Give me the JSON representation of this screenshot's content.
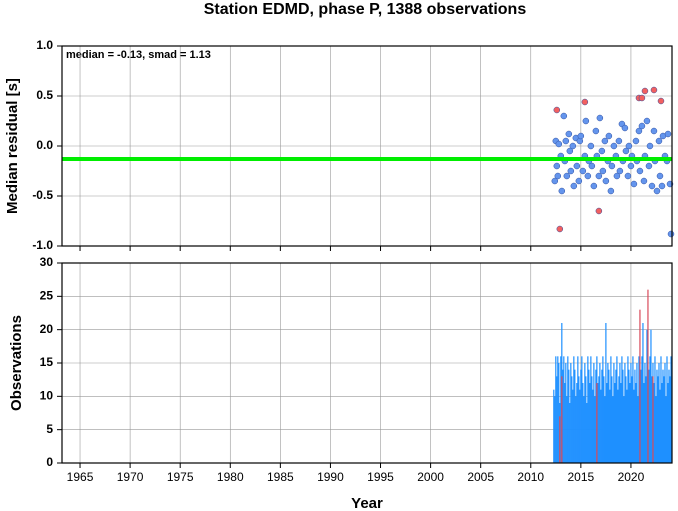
{
  "chart_data": [
    {
      "type": "scatter",
      "title": "Station EDMD, phase P, 1388 observations",
      "y_label": "Median residual [s]",
      "annotation": "median = -0.13, smad = 1.13",
      "median": -0.13,
      "median_color": "#00ee00",
      "xlim": [
        1963.2,
        2024.1
      ],
      "xticks": [
        1965,
        1970,
        1975,
        1980,
        1985,
        1990,
        1995,
        2000,
        2005,
        2010,
        2015,
        2020
      ],
      "ylim": [
        -1,
        1
      ],
      "yticks": [
        {
          "value": -1,
          "label": "-1.0"
        },
        -0.5,
        {
          "value": 0,
          "label": "0.0"
        },
        0.5,
        {
          "value": 1,
          "label": "1.0"
        }
      ],
      "grid": true,
      "series": [
        {
          "color": "#6495ed",
          "x": [
            2012.4,
            2012.5,
            2012.6,
            2012.7,
            2012.8,
            2013.0,
            2013.1,
            2013.3,
            2013.4,
            2013.5,
            2013.6,
            2013.8,
            2013.9,
            2014.0,
            2014.2,
            2014.3,
            2014.5,
            2014.6,
            2014.8,
            2014.9,
            2015.0,
            2015.2,
            2015.4,
            2015.5,
            2015.7,
            2015.8,
            2016.0,
            2016.1,
            2016.3,
            2016.5,
            2016.6,
            2016.8,
            2016.9,
            2017.1,
            2017.2,
            2017.4,
            2017.5,
            2017.7,
            2017.8,
            2018.0,
            2018.1,
            2018.3,
            2018.5,
            2018.6,
            2018.8,
            2018.9,
            2019.1,
            2019.2,
            2019.4,
            2019.5,
            2019.7,
            2019.8,
            2020.0,
            2020.1,
            2020.3,
            2020.5,
            2020.6,
            2020.8,
            2020.9,
            2021.1,
            2021.3,
            2021.4,
            2021.6,
            2021.8,
            2021.9,
            2022.1,
            2022.3,
            2022.4,
            2022.6,
            2022.8,
            2022.9,
            2023.1,
            2023.2,
            2023.4,
            2023.6,
            2023.7,
            2023.9,
            2024.0
          ],
          "values": [
            -0.35,
            0.05,
            -0.2,
            -0.3,
            0.02,
            -0.1,
            -0.45,
            0.3,
            -0.15,
            0.05,
            -0.3,
            0.12,
            -0.05,
            -0.25,
            0.0,
            -0.4,
            0.08,
            -0.2,
            -0.35,
            0.05,
            0.1,
            -0.25,
            -0.1,
            0.25,
            -0.3,
            -0.15,
            0.0,
            -0.2,
            -0.4,
            0.15,
            -0.1,
            -0.3,
            0.28,
            -0.05,
            -0.25,
            0.05,
            -0.35,
            -0.15,
            0.1,
            -0.45,
            -0.2,
            0.0,
            -0.1,
            -0.3,
            0.05,
            -0.25,
            0.22,
            -0.15,
            0.18,
            -0.05,
            -0.3,
            0.0,
            -0.2,
            -0.1,
            -0.38,
            0.05,
            -0.15,
            0.15,
            -0.25,
            0.2,
            -0.35,
            -0.1,
            0.25,
            -0.2,
            0.0,
            -0.4,
            0.15,
            -0.15,
            -0.45,
            0.05,
            -0.3,
            -0.4,
            0.1,
            -0.1,
            -0.15,
            0.12,
            -0.38,
            -0.88
          ]
        },
        {
          "color": "#f26060",
          "x": [
            2012.6,
            2012.9,
            2015.4,
            2016.8,
            2020.8,
            2021.1,
            2021.4,
            2022.3,
            2023.0
          ],
          "values": [
            0.36,
            -0.83,
            0.44,
            -0.65,
            0.48,
            0.48,
            0.55,
            0.56,
            0.45
          ]
        }
      ]
    },
    {
      "type": "bar",
      "y_label": "Observations",
      "x_label": "Year",
      "xlim": [
        1963.2,
        2024.1
      ],
      "xticks": [
        1965,
        1970,
        1975,
        1980,
        1985,
        1990,
        1995,
        2000,
        2005,
        2010,
        2015,
        2020
      ],
      "ylim": [
        0,
        30
      ],
      "yticks": [
        0,
        5,
        10,
        15,
        20,
        25,
        30
      ],
      "grid": true,
      "series": [
        {
          "color": "#1e90ff",
          "x": [
            2012.3,
            2012.4,
            2012.5,
            2012.6,
            2012.7,
            2012.8,
            2012.9,
            2013.0,
            2013.1,
            2013.2,
            2013.3,
            2013.4,
            2013.5,
            2013.6,
            2013.7,
            2013.8,
            2013.9,
            2014.0,
            2014.1,
            2014.2,
            2014.3,
            2014.4,
            2014.5,
            2014.6,
            2014.7,
            2014.8,
            2014.9,
            2015.0,
            2015.1,
            2015.2,
            2015.3,
            2015.4,
            2015.5,
            2015.6,
            2015.7,
            2015.8,
            2015.9,
            2016.0,
            2016.1,
            2016.2,
            2016.3,
            2016.4,
            2016.5,
            2016.6,
            2016.7,
            2016.8,
            2016.9,
            2017.0,
            2017.1,
            2017.2,
            2017.3,
            2017.4,
            2017.5,
            2017.6,
            2017.7,
            2017.8,
            2017.9,
            2018.0,
            2018.1,
            2018.2,
            2018.3,
            2018.4,
            2018.5,
            2018.6,
            2018.7,
            2018.8,
            2018.9,
            2019.0,
            2019.1,
            2019.2,
            2019.3,
            2019.4,
            2019.5,
            2019.6,
            2019.7,
            2019.8,
            2019.9,
            2020.0,
            2020.1,
            2020.2,
            2020.3,
            2020.4,
            2020.5,
            2020.6,
            2020.7,
            2020.8,
            2020.9,
            2021.0,
            2021.1,
            2021.2,
            2021.3,
            2021.4,
            2021.5,
            2021.6,
            2021.7,
            2021.8,
            2021.9,
            2022.0,
            2022.1,
            2022.2,
            2022.3,
            2022.4,
            2022.5,
            2022.6,
            2022.7,
            2022.8,
            2022.9,
            2023.0,
            2023.1,
            2023.2,
            2023.3,
            2023.4,
            2023.5,
            2023.6,
            2023.7,
            2023.8,
            2023.9,
            2024.0
          ],
          "values": [
            11,
            10,
            16,
            13,
            16,
            15,
            9,
            16,
            21,
            14,
            16,
            12,
            15,
            10,
            16,
            14,
            9,
            15,
            13,
            11,
            16,
            14,
            10,
            12,
            16,
            13,
            11,
            14,
            16,
            12,
            10,
            15,
            13,
            9,
            16,
            14,
            12,
            16,
            13,
            11,
            15,
            10,
            14,
            16,
            12,
            13,
            15,
            11,
            14,
            16,
            13,
            10,
            21,
            12,
            15,
            14,
            11,
            16,
            13,
            10,
            15,
            12,
            14,
            16,
            11,
            13,
            15,
            12,
            16,
            14,
            10,
            15,
            13,
            11,
            16,
            14,
            12,
            15,
            13,
            16,
            11,
            14,
            12,
            15,
            10,
            16,
            13,
            14,
            16,
            21,
            12,
            15,
            13,
            20,
            11,
            14,
            16,
            20,
            13,
            15,
            12,
            16,
            10,
            14,
            13,
            15,
            11,
            16,
            12,
            14,
            13,
            15,
            10,
            16,
            12,
            14,
            13,
            16
          ]
        },
        {
          "color": "#d94a5a",
          "x": [
            2012.9,
            2013.1,
            2016.6,
            2020.9,
            2021.7,
            2022.2
          ],
          "values": [
            7,
            13,
            12,
            23,
            26,
            13
          ]
        }
      ]
    }
  ]
}
